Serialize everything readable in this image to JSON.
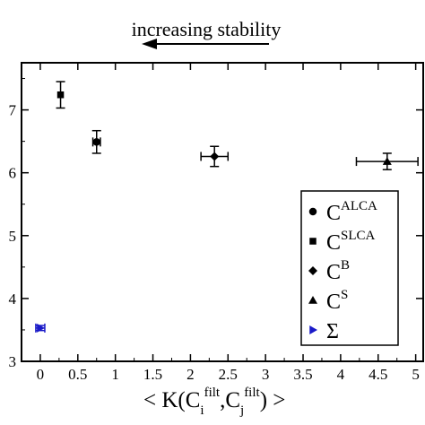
{
  "chart_data": {
    "type": "scatter",
    "annotation": {
      "text": "increasing stability",
      "arrow": "left"
    },
    "xlabel": {
      "prefix": "< K(C",
      "i_sub": "i",
      "filt1": "filt",
      "sep": ",C",
      "j_sub": "j",
      "filt2": "filt",
      "suffix": ") >"
    },
    "ylabel": "",
    "xlim": [
      -0.25,
      5.1
    ],
    "ylim": [
      3.0,
      7.75
    ],
    "xticks": [
      "0",
      "0.5",
      "1",
      "1.5",
      "2",
      "2.5",
      "3",
      "3.5",
      "4",
      "4.5",
      "5"
    ],
    "yticks": [
      "3",
      "4",
      "5",
      "6",
      "7"
    ],
    "grid": false,
    "legend_position": "right",
    "series": [
      {
        "name": "C",
        "sup": "ALCA",
        "marker": "circle",
        "color": "#000000",
        "points": [
          {
            "x": 0.75,
            "y": 6.49,
            "xerr": 0.05,
            "yerr": 0.18
          }
        ]
      },
      {
        "name": "C",
        "sup": "SLCA",
        "marker": "square",
        "color": "#000000",
        "points": [
          {
            "x": 0.27,
            "y": 7.24,
            "xerr": 0.0,
            "yerr": 0.21
          }
        ]
      },
      {
        "name": "C",
        "sup": "B",
        "marker": "diamond",
        "color": "#000000",
        "points": [
          {
            "x": 2.32,
            "y": 6.26,
            "xerr": 0.18,
            "yerr": 0.16
          }
        ]
      },
      {
        "name": "C",
        "sup": "S",
        "marker": "triangle",
        "color": "#000000",
        "points": [
          {
            "x": 4.62,
            "y": 6.18,
            "xerr": 0.41,
            "yerr": 0.13
          }
        ]
      },
      {
        "name": "Σ",
        "sup": "",
        "marker": "triangle-right",
        "color": "#1a1ac8",
        "points": [
          {
            "x": 0.0,
            "y": 3.53,
            "xerr": 0.06,
            "yerr": 0.04
          }
        ]
      }
    ]
  }
}
